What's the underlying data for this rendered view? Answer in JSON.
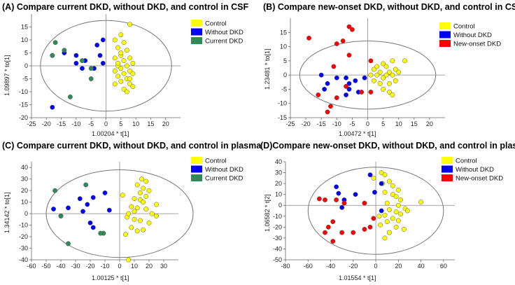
{
  "colors": {
    "Control": "#ffff00",
    "Without DKD": "#0000ff",
    "Current DKD": "#2e8b57",
    "New-onset DKD": "#ff0000"
  },
  "chart_data": [
    {
      "type": "scatter",
      "title": "(A) Compare current DKD, without DKD, and control  in CSF",
      "xlabel": "1.00204 * t[1]",
      "ylabel": "1.09897 * to[1]",
      "xlim": [
        -25,
        25
      ],
      "ylim": [
        -20,
        20
      ],
      "xticks": [
        -25,
        -20,
        -15,
        -10,
        -5,
        0,
        5,
        10,
        15,
        20
      ],
      "yticks": [
        -20,
        -15,
        -10,
        -5,
        0,
        5,
        10,
        15
      ],
      "ellipse": {
        "cx": 0,
        "cy": 0,
        "rx": 22,
        "ry": 17.5
      },
      "legend": [
        "Control",
        "Without DKD",
        "Current DKD"
      ],
      "series": [
        {
          "name": "Control",
          "points": [
            [
              8,
              16
            ],
            [
              5,
              12
            ],
            [
              3,
              10
            ],
            [
              6,
              9
            ],
            [
              4,
              7
            ],
            [
              7,
              6
            ],
            [
              5,
              4
            ],
            [
              8,
              3
            ],
            [
              3,
              3
            ],
            [
              6,
              2
            ],
            [
              9,
              1
            ],
            [
              4,
              0
            ],
            [
              7,
              0
            ],
            [
              5,
              -1
            ],
            [
              8,
              -2
            ],
            [
              3,
              -2
            ],
            [
              6,
              -3
            ],
            [
              9,
              -3
            ],
            [
              4,
              -4
            ],
            [
              7,
              -5
            ],
            [
              5,
              -6
            ],
            [
              8,
              -7
            ],
            [
              3,
              -7
            ],
            [
              6,
              -9
            ],
            [
              7,
              -10
            ],
            [
              9,
              -8
            ],
            [
              8,
              -5
            ],
            [
              4,
              1
            ],
            [
              5,
              5
            ]
          ]
        },
        {
          "name": "Without DKD",
          "points": [
            [
              -1,
              10
            ],
            [
              -3,
              8
            ],
            [
              -10,
              4
            ],
            [
              -14,
              5
            ],
            [
              -18,
              4
            ],
            [
              -2,
              4
            ],
            [
              -7,
              2
            ],
            [
              -1,
              1
            ],
            [
              -10,
              1
            ],
            [
              -4,
              -1
            ],
            [
              -8,
              -1
            ],
            [
              -18,
              -16
            ]
          ]
        },
        {
          "name": "Current DKD",
          "points": [
            [
              -17,
              9
            ],
            [
              -14,
              6
            ],
            [
              -18,
              4
            ],
            [
              -8,
              2
            ],
            [
              -5,
              -1
            ],
            [
              -12,
              -12
            ],
            [
              -5,
              -5
            ]
          ]
        }
      ]
    },
    {
      "type": "scatter",
      "title": "(B) Compare new-onset DKD, without DKD, and control in CSF",
      "xlabel": "1.00472 * t[1]",
      "ylabel": "1.23481 * to[1]",
      "xlim": [
        -25,
        25
      ],
      "ylim": [
        -15,
        20
      ],
      "xticks": [
        -25,
        -20,
        -15,
        -10,
        -5,
        0,
        5,
        10,
        15,
        20
      ],
      "yticks": [
        -15,
        -10,
        -5,
        0,
        5,
        10,
        15
      ],
      "ellipse": {
        "cx": 0,
        "cy": 0,
        "rx": 22,
        "ry": 12
      },
      "legend": [
        "Control",
        "Without DKD",
        "New-onset DKD"
      ],
      "series": [
        {
          "name": "Control",
          "points": [
            [
              12,
              5
            ],
            [
              8,
              5
            ],
            [
              5,
              4
            ],
            [
              3,
              3
            ],
            [
              6,
              3
            ],
            [
              9,
              2
            ],
            [
              2,
              2
            ],
            [
              4,
              1
            ],
            [
              7,
              1
            ],
            [
              10,
              1
            ],
            [
              1,
              0
            ],
            [
              3,
              0
            ],
            [
              6,
              0
            ],
            [
              8,
              0
            ],
            [
              5,
              -1
            ],
            [
              2,
              -2
            ],
            [
              4,
              -3
            ],
            [
              7,
              -3
            ],
            [
              9,
              -2
            ],
            [
              5,
              -5
            ],
            [
              7,
              -6
            ],
            [
              8,
              -7
            ]
          ]
        },
        {
          "name": "Without DKD",
          "points": [
            [
              -6,
              -3
            ],
            [
              -4,
              -2
            ],
            [
              -15,
              0
            ],
            [
              -10,
              -1
            ],
            [
              -7,
              -1
            ],
            [
              -13,
              -3
            ],
            [
              -1,
              -1
            ],
            [
              -6,
              -5
            ],
            [
              -3,
              -6
            ],
            [
              -7,
              -7
            ],
            [
              -14,
              -5
            ]
          ]
        },
        {
          "name": "New-onset DKD",
          "points": [
            [
              -6,
              17
            ],
            [
              -5,
              16
            ],
            [
              -19,
              13
            ],
            [
              -10,
              11
            ],
            [
              -8,
              12
            ],
            [
              -6,
              7
            ],
            [
              1,
              5
            ],
            [
              -11,
              3
            ],
            [
              -10,
              -8
            ],
            [
              -16,
              -7
            ],
            [
              -12,
              -11
            ],
            [
              -13,
              -13
            ],
            [
              -2,
              -6
            ],
            [
              1,
              -6
            ],
            [
              -7,
              -4
            ]
          ]
        }
      ]
    },
    {
      "type": "scatter",
      "title": "(C)  Compare current DKD, without DKD, and control in plasma",
      "xlabel": "1.00125 * t[1]",
      "ylabel": "1.34142 * to[1]",
      "xlim": [
        -60,
        40
      ],
      "ylim": [
        -40,
        45
      ],
      "xticks": [
        -60,
        -50,
        -40,
        -30,
        -20,
        -10,
        0,
        10,
        20,
        30
      ],
      "yticks": [
        -40,
        -30,
        -20,
        -10,
        0,
        10,
        20,
        30,
        40
      ],
      "ellipse": {
        "cx": 0,
        "cy": 0,
        "rx": 50,
        "ry": 38
      },
      "legend": [
        "Control",
        "Without DKD",
        "Current DKD"
      ],
      "series": [
        {
          "name": "Control",
          "points": [
            [
              15,
              30
            ],
            [
              18,
              28
            ],
            [
              12,
              25
            ],
            [
              16,
              22
            ],
            [
              20,
              20
            ],
            [
              14,
              18
            ],
            [
              18,
              15
            ],
            [
              2,
              16
            ],
            [
              10,
              13
            ],
            [
              14,
              12
            ],
            [
              16,
              10
            ],
            [
              25,
              8
            ],
            [
              8,
              6
            ],
            [
              12,
              5
            ],
            [
              18,
              4
            ],
            [
              22,
              0
            ],
            [
              25,
              -2
            ],
            [
              5,
              -3
            ],
            [
              10,
              -5
            ],
            [
              14,
              -6
            ],
            [
              20,
              -8
            ],
            [
              8,
              -12
            ],
            [
              12,
              -15
            ],
            [
              16,
              -14
            ],
            [
              4,
              -18
            ],
            [
              6,
              -40
            ],
            [
              10,
              2
            ],
            [
              6,
              0
            ]
          ]
        },
        {
          "name": "Without DKD",
          "points": [
            [
              -27,
              13
            ],
            [
              -18,
              14
            ],
            [
              -10,
              18
            ],
            [
              -22,
              8
            ],
            [
              -35,
              5
            ],
            [
              -45,
              4
            ],
            [
              -25,
              2
            ],
            [
              -7,
              3
            ],
            [
              -20,
              -8
            ],
            [
              -18,
              -12
            ],
            [
              -40,
              -2
            ]
          ]
        },
        {
          "name": "Current DKD",
          "points": [
            [
              -23,
              25
            ],
            [
              -44,
              20
            ],
            [
              -40,
              -2
            ],
            [
              -35,
              -26
            ],
            [
              -11,
              -17
            ],
            [
              -13,
              -17
            ]
          ]
        }
      ]
    },
    {
      "type": "scatter",
      "title": "(D)Compare new-onset DKD, without DKD, and control in plasma",
      "xlabel": "1.01554 * t[1]",
      "ylabel": "1.06582 * t[2]",
      "xlim": [
        -80,
        70
      ],
      "ylim": [
        -50,
        40
      ],
      "xticks": [
        -80,
        -60,
        -40,
        -20,
        0,
        20,
        40,
        60
      ],
      "yticks": [
        -50,
        -40,
        -30,
        -20,
        -10,
        0,
        10,
        20,
        30,
        40
      ],
      "ellipse": {
        "cx": 0,
        "cy": -5,
        "rx": 60,
        "ry": 40
      },
      "legend": [
        "Control",
        "Without DKD",
        "New-onset DKD"
      ],
      "series": [
        {
          "name": "Control",
          "points": [
            [
              5,
              30
            ],
            [
              8,
              28
            ],
            [
              -2,
              25
            ],
            [
              12,
              22
            ],
            [
              6,
              20
            ],
            [
              15,
              18
            ],
            [
              20,
              14
            ],
            [
              8,
              12
            ],
            [
              15,
              10
            ],
            [
              18,
              8
            ],
            [
              22,
              5
            ],
            [
              40,
              3
            ],
            [
              10,
              2
            ],
            [
              20,
              0
            ],
            [
              26,
              -3
            ],
            [
              12,
              -4
            ],
            [
              18,
              -6
            ],
            [
              22,
              -8
            ],
            [
              8,
              -9
            ],
            [
              15,
              -12
            ],
            [
              20,
              -14
            ],
            [
              10,
              -15
            ],
            [
              4,
              -18
            ],
            [
              18,
              -20
            ],
            [
              25,
              -22
            ],
            [
              12,
              -25
            ],
            [
              8,
              -30
            ],
            [
              3,
              -10
            ],
            [
              28,
              -5
            ]
          ]
        },
        {
          "name": "Without DKD",
          "points": [
            [
              -35,
              17
            ],
            [
              -5,
              28
            ],
            [
              5,
              20
            ],
            [
              -33,
              11
            ],
            [
              -1,
              12
            ],
            [
              -18,
              10
            ],
            [
              5,
              -5
            ],
            [
              -28,
              5
            ],
            [
              -30,
              -2
            ]
          ]
        },
        {
          "name": "New-onset DKD",
          "points": [
            [
              -50,
              6
            ],
            [
              -45,
              5
            ],
            [
              -35,
              5
            ],
            [
              -28,
              2
            ],
            [
              -10,
              2
            ],
            [
              -2,
              -12
            ],
            [
              -38,
              -15
            ],
            [
              -42,
              -20
            ],
            [
              -10,
              -22
            ],
            [
              -20,
              -25
            ],
            [
              -30,
              -25
            ],
            [
              -45,
              -25
            ],
            [
              -38,
              -33
            ],
            [
              -5,
              -20
            ]
          ]
        }
      ]
    }
  ]
}
